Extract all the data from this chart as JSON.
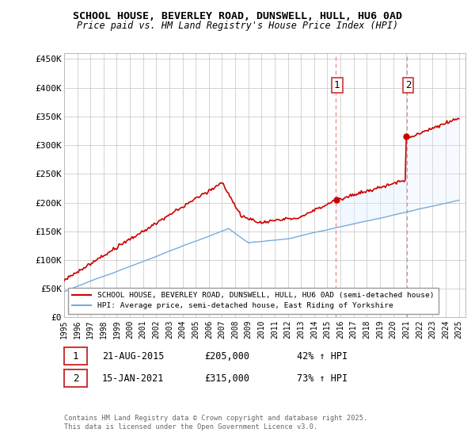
{
  "title": "SCHOOL HOUSE, BEVERLEY ROAD, DUNSWELL, HULL, HU6 0AD",
  "subtitle": "Price paid vs. HM Land Registry's House Price Index (HPI)",
  "title_fontsize": 9.5,
  "subtitle_fontsize": 8.5,
  "ylabel_ticks": [
    "£0",
    "£50K",
    "£100K",
    "£150K",
    "£200K",
    "£250K",
    "£300K",
    "£350K",
    "£400K",
    "£450K"
  ],
  "ylim": [
    0,
    460000
  ],
  "ytick_vals": [
    0,
    50000,
    100000,
    150000,
    200000,
    250000,
    300000,
    350000,
    400000,
    450000
  ],
  "sale1_date": 2015.64,
  "sale1_price": 205000,
  "sale2_date": 2021.04,
  "sale2_price": 315000,
  "hpi_color": "#7aabdb",
  "price_color": "#cc0000",
  "shade_color": "#ddeeff",
  "vline_color": "#ee8888",
  "legend_line1": "SCHOOL HOUSE, BEVERLEY ROAD, DUNSWELL, HULL, HU6 0AD (semi-detached house)",
  "legend_line2": "HPI: Average price, semi-detached house, East Riding of Yorkshire",
  "note1_date": "21-AUG-2015",
  "note1_price": "£205,000",
  "note1_pct": "42% ↑ HPI",
  "note2_date": "15-JAN-2021",
  "note2_price": "£315,000",
  "note2_pct": "73% ↑ HPI",
  "footer": "Contains HM Land Registry data © Crown copyright and database right 2025.\nThis data is licensed under the Open Government Licence v3.0.",
  "background_color": "#ffffff",
  "grid_color": "#cccccc"
}
